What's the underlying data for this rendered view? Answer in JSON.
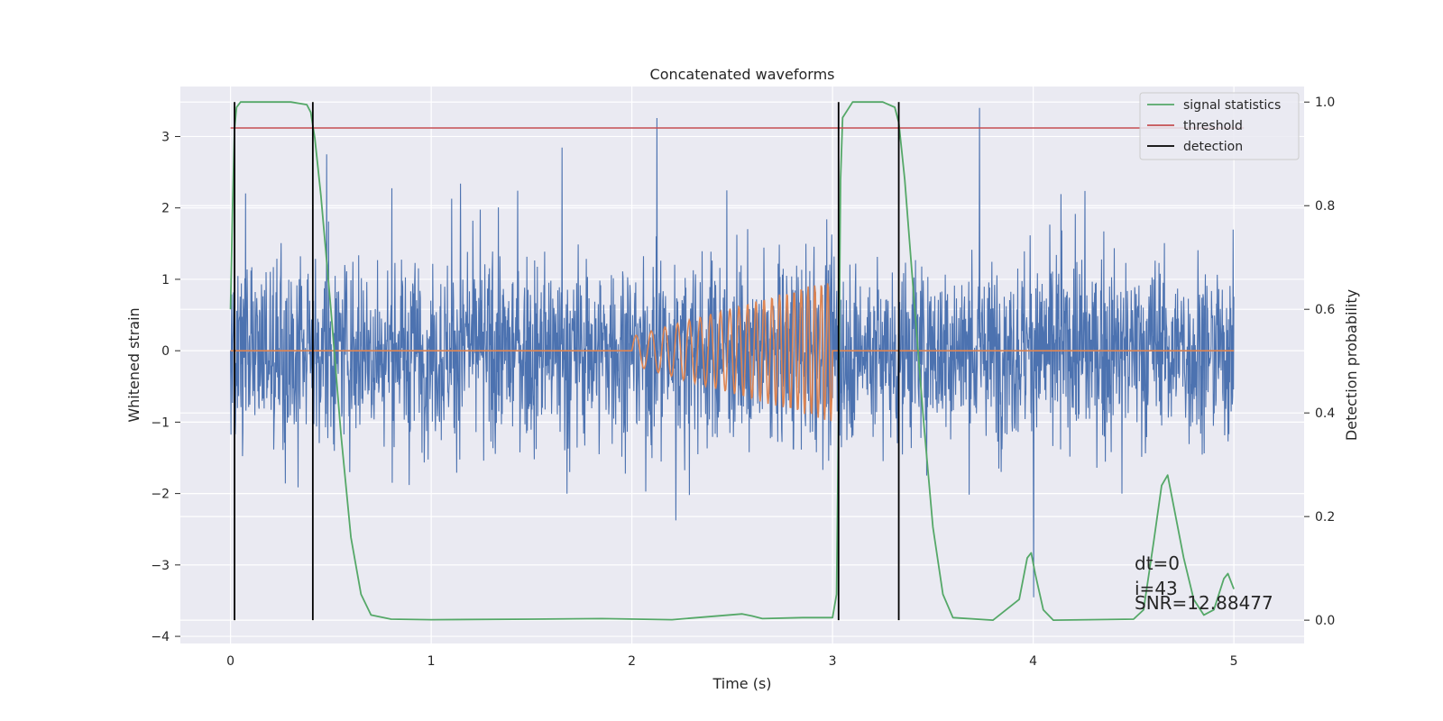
{
  "chart_data": {
    "type": "line",
    "title": "Concatenated waveforms",
    "xlabel": "Time (s)",
    "ylabel": "Whitened strain",
    "y2label": "Detection probability",
    "xlim": [
      -0.25,
      5.35
    ],
    "ylim": [
      -4.1,
      3.7
    ],
    "y2lim": [
      -0.045,
      1.03
    ],
    "xticks": [
      0,
      1,
      2,
      3,
      4,
      5
    ],
    "yticks": [
      -4,
      -3,
      -2,
      -1,
      0,
      1,
      2,
      3
    ],
    "y2ticks": [
      0.0,
      0.2,
      0.4,
      0.6,
      0.8,
      1.0
    ],
    "y2ticklabels": [
      "0.0",
      "0.2",
      "0.4",
      "0.6",
      "0.8",
      "1.0"
    ],
    "grid": true,
    "legend_position": "top-right",
    "legend": [
      "signal statistics",
      "threshold",
      "detection"
    ],
    "threshold": 0.95,
    "detections": [
      0.02,
      0.41,
      3.03,
      3.33
    ],
    "annotations": [
      "dt=0",
      "i=43",
      "SNR=12.88477"
    ],
    "signal_statistics": {
      "x": [
        0,
        0.01,
        0.02,
        0.03,
        0.05,
        0.1,
        0.2,
        0.3,
        0.38,
        0.4,
        0.42,
        0.45,
        0.5,
        0.55,
        0.6,
        0.65,
        0.7,
        0.8,
        1.0,
        1.5,
        1.85,
        2.2,
        2.55,
        2.6,
        2.65,
        2.85,
        3.0,
        3.02,
        3.03,
        3.04,
        3.05,
        3.1,
        3.25,
        3.31,
        3.33,
        3.36,
        3.4,
        3.45,
        3.5,
        3.55,
        3.6,
        3.8,
        3.93,
        3.97,
        3.99,
        4.01,
        4.05,
        4.1,
        4.5,
        4.55,
        4.6,
        4.64,
        4.67,
        4.7,
        4.75,
        4.8,
        4.85,
        4.9,
        4.95,
        4.97,
        5.0
      ],
      "y": [
        0.6,
        0.8,
        0.95,
        0.99,
        1.0,
        1.0,
        1.0,
        1.0,
        0.995,
        0.98,
        0.93,
        0.82,
        0.6,
        0.36,
        0.16,
        0.05,
        0.01,
        0.002,
        0.001,
        0.002,
        0.003,
        0.001,
        0.012,
        0.008,
        0.003,
        0.005,
        0.005,
        0.05,
        0.4,
        0.85,
        0.97,
        1.0,
        1.0,
        0.99,
        0.96,
        0.85,
        0.65,
        0.4,
        0.18,
        0.05,
        0.005,
        0.0,
        0.04,
        0.12,
        0.13,
        0.09,
        0.02,
        0.0,
        0.002,
        0.02,
        0.15,
        0.26,
        0.28,
        0.22,
        0.12,
        0.04,
        0.01,
        0.02,
        0.08,
        0.09,
        0.06
      ]
    },
    "series_colors": {
      "noise": "#4c72b0",
      "template": "#dd8452",
      "signal_statistics": "#55a868",
      "threshold": "#c44e52",
      "detection": "#000000",
      "axes_background": "#eaeaf2",
      "grid": "#ffffff",
      "text": "#262626"
    },
    "template_chirp": {
      "start": 2.0,
      "end": 3.0,
      "amplitude_start": 0.2,
      "amplitude_end": 1.0
    }
  }
}
